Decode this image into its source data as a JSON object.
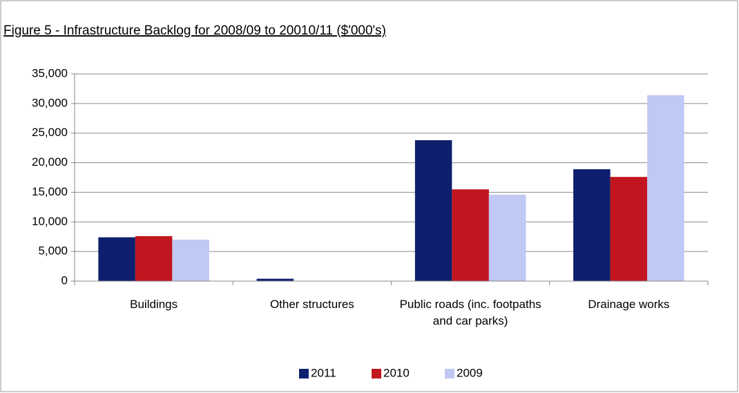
{
  "chart_data": {
    "type": "bar",
    "title": "Figure 5 - Infrastructure Backlog for 2008/09 to 20010/11 ($'000's)",
    "categories": [
      "Buildings",
      "Other structures",
      "Public roads (inc. footpaths and car parks)",
      "Drainage works"
    ],
    "series": [
      {
        "name": "2011",
        "color": "#0d1f6d",
        "values": [
          7400,
          400,
          23800,
          18900
        ]
      },
      {
        "name": "2010",
        "color": "#c1161f",
        "values": [
          7600,
          0,
          15500,
          17600
        ]
      },
      {
        "name": "2009",
        "color": "#c0c8f4",
        "values": [
          7000,
          0,
          14600,
          31400
        ]
      }
    ],
    "ylim": [
      0,
      35000
    ],
    "yticks": [
      0,
      {
        "value": 5000,
        "label": "5,000"
      },
      {
        "value": 10000,
        "label": "10,000"
      },
      {
        "value": 15000,
        "label": "15,000"
      },
      {
        "value": 20000,
        "label": "20,000"
      },
      {
        "value": 25000,
        "label": "25,000"
      },
      {
        "value": 30000,
        "label": "30,000"
      },
      {
        "value": 35000,
        "label": "35,000"
      }
    ],
    "grid": true,
    "legend": "bottom"
  }
}
